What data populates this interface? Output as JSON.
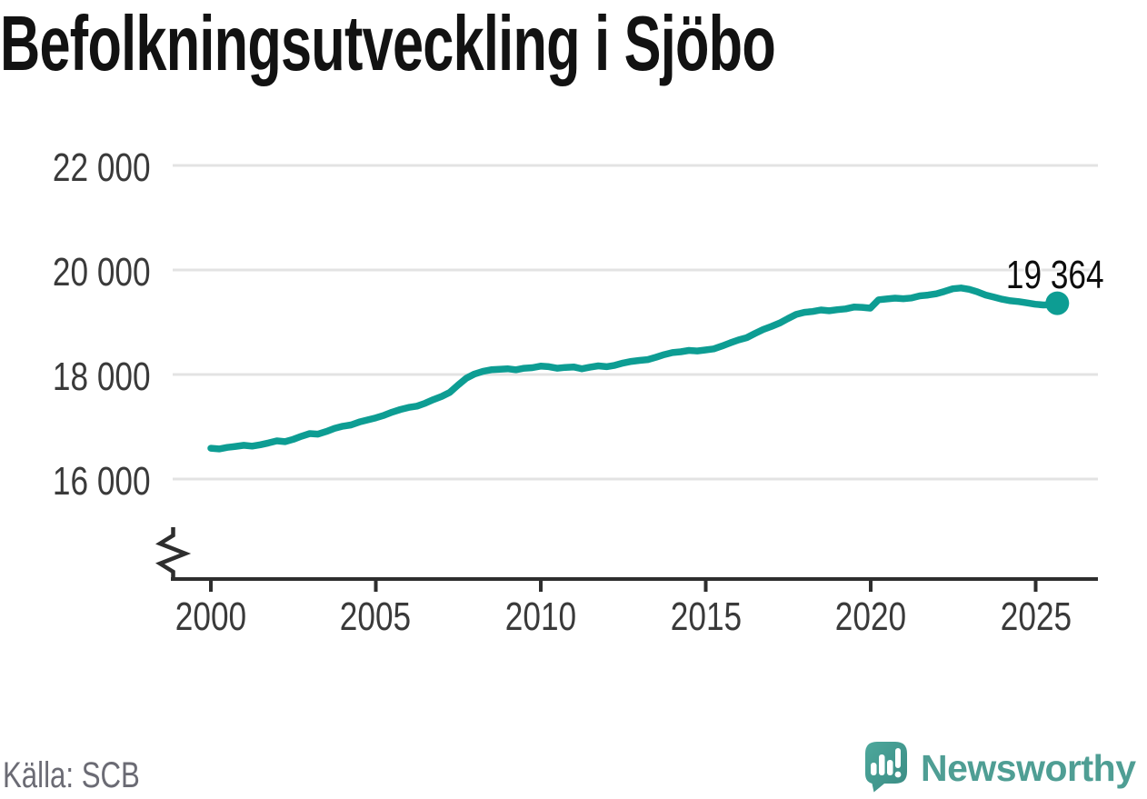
{
  "title": "Befolkningsutveckling i Sjöbo",
  "source": "Källa: SCB",
  "logo": {
    "name": "Newsworthy",
    "icon": "newsworthy-speech-bubble-bar-chart-icon"
  },
  "colors": {
    "line": "#0d9d93",
    "end_dot": "#0d9d93",
    "grid": "#e3e3e3",
    "axis": "#2e2e2e",
    "title_text": "#121212",
    "tick_label": "#3a3a3a",
    "source_text": "#6b6b74",
    "logo_teal": "#4f9e94",
    "logo_gradient_start": "#4da89c",
    "logo_gradient_end": "#3a8b83"
  },
  "chart_data": {
    "type": "line",
    "title": "Befolkningsutveckling i Sjöbo",
    "xlabel": "",
    "ylabel": "",
    "x_tick_labels": [
      "2000",
      "2005",
      "2010",
      "2015",
      "2020",
      "2025"
    ],
    "y_tick_labels": [
      "22 000",
      "20 000",
      "18 000",
      "16 000"
    ],
    "y_tick_values": [
      22000,
      20000,
      18000,
      16000
    ],
    "xlim": [
      1999,
      2027
    ],
    "ylim": [
      16000,
      22000
    ],
    "y_axis_break": true,
    "grid": "horizontal",
    "end_label": "19 364",
    "end_value": 19364,
    "series": [
      {
        "name": "Befolkning",
        "points": [
          [
            2000.0,
            16590
          ],
          [
            2000.25,
            16575
          ],
          [
            2000.5,
            16605
          ],
          [
            2000.75,
            16625
          ],
          [
            2001.0,
            16645
          ],
          [
            2001.25,
            16630
          ],
          [
            2001.5,
            16655
          ],
          [
            2001.75,
            16690
          ],
          [
            2002.0,
            16730
          ],
          [
            2002.25,
            16715
          ],
          [
            2002.5,
            16760
          ],
          [
            2002.75,
            16820
          ],
          [
            2003.0,
            16870
          ],
          [
            2003.25,
            16860
          ],
          [
            2003.5,
            16910
          ],
          [
            2003.75,
            16970
          ],
          [
            2004.0,
            17010
          ],
          [
            2004.25,
            17035
          ],
          [
            2004.5,
            17090
          ],
          [
            2004.75,
            17130
          ],
          [
            2005.0,
            17170
          ],
          [
            2005.25,
            17220
          ],
          [
            2005.5,
            17280
          ],
          [
            2005.75,
            17330
          ],
          [
            2006.0,
            17370
          ],
          [
            2006.25,
            17395
          ],
          [
            2006.5,
            17450
          ],
          [
            2006.75,
            17520
          ],
          [
            2007.0,
            17580
          ],
          [
            2007.25,
            17660
          ],
          [
            2007.5,
            17800
          ],
          [
            2007.75,
            17930
          ],
          [
            2008.0,
            18010
          ],
          [
            2008.25,
            18060
          ],
          [
            2008.5,
            18090
          ],
          [
            2008.75,
            18100
          ],
          [
            2009.0,
            18110
          ],
          [
            2009.25,
            18090
          ],
          [
            2009.5,
            18120
          ],
          [
            2009.75,
            18130
          ],
          [
            2010.0,
            18160
          ],
          [
            2010.25,
            18150
          ],
          [
            2010.5,
            18120
          ],
          [
            2010.75,
            18135
          ],
          [
            2011.0,
            18145
          ],
          [
            2011.25,
            18110
          ],
          [
            2011.5,
            18140
          ],
          [
            2011.75,
            18165
          ],
          [
            2012.0,
            18150
          ],
          [
            2012.25,
            18175
          ],
          [
            2012.5,
            18220
          ],
          [
            2012.75,
            18250
          ],
          [
            2013.0,
            18270
          ],
          [
            2013.25,
            18285
          ],
          [
            2013.5,
            18330
          ],
          [
            2013.75,
            18380
          ],
          [
            2014.0,
            18420
          ],
          [
            2014.25,
            18435
          ],
          [
            2014.5,
            18460
          ],
          [
            2014.75,
            18450
          ],
          [
            2015.0,
            18470
          ],
          [
            2015.25,
            18490
          ],
          [
            2015.5,
            18545
          ],
          [
            2015.75,
            18605
          ],
          [
            2016.0,
            18660
          ],
          [
            2016.25,
            18705
          ],
          [
            2016.5,
            18785
          ],
          [
            2016.75,
            18860
          ],
          [
            2017.0,
            18920
          ],
          [
            2017.25,
            18985
          ],
          [
            2017.5,
            19070
          ],
          [
            2017.75,
            19150
          ],
          [
            2018.0,
            19190
          ],
          [
            2018.25,
            19205
          ],
          [
            2018.5,
            19235
          ],
          [
            2018.75,
            19220
          ],
          [
            2019.0,
            19240
          ],
          [
            2019.25,
            19255
          ],
          [
            2019.5,
            19290
          ],
          [
            2019.75,
            19285
          ],
          [
            2020.0,
            19270
          ],
          [
            2020.25,
            19430
          ],
          [
            2020.5,
            19445
          ],
          [
            2020.75,
            19460
          ],
          [
            2021.0,
            19450
          ],
          [
            2021.25,
            19465
          ],
          [
            2021.5,
            19505
          ],
          [
            2021.75,
            19520
          ],
          [
            2022.0,
            19545
          ],
          [
            2022.25,
            19590
          ],
          [
            2022.5,
            19640
          ],
          [
            2022.75,
            19655
          ],
          [
            2023.0,
            19630
          ],
          [
            2023.25,
            19580
          ],
          [
            2023.5,
            19520
          ],
          [
            2023.75,
            19480
          ],
          [
            2024.0,
            19440
          ],
          [
            2024.25,
            19410
          ],
          [
            2024.5,
            19395
          ],
          [
            2024.75,
            19370
          ],
          [
            2025.0,
            19345
          ],
          [
            2025.25,
            19330
          ],
          [
            2025.5,
            19335
          ],
          [
            2025.67,
            19364
          ]
        ]
      }
    ]
  }
}
